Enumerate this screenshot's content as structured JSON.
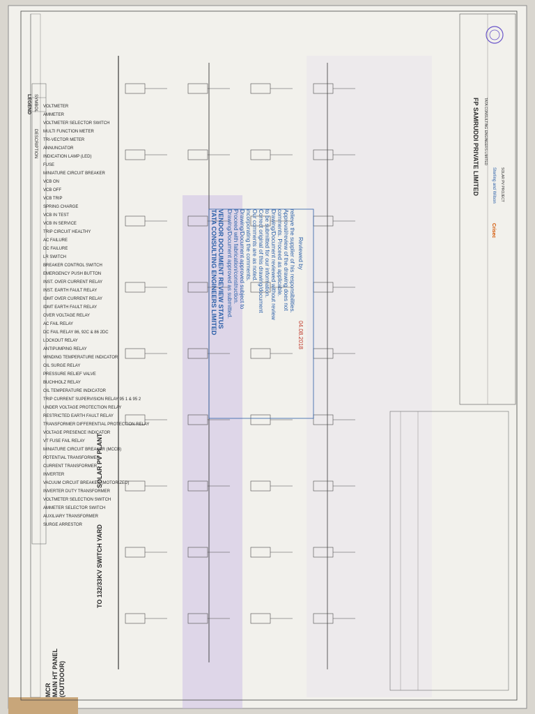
{
  "header": {
    "switchyard": "TO 132/33KV SWITCH YARD",
    "plant": "SOLAR PV PLANT",
    "mcr": [
      "MCR",
      "MAIN HT PANEL",
      "(OUTDOOR)"
    ]
  },
  "legend": {
    "title": "LEGEND",
    "col_symbol": "SYMBOL",
    "col_description": "DESCRIPTION",
    "items": [
      "VOLTMETER",
      "AMMETER",
      "VOLTMETER SELECTOR SWITCH",
      "MULTI FUNCTION METER",
      "TRI-VECTOR METER",
      "ANNUNCIATOR",
      "INDICATION LAMP (LED)",
      "FUSE",
      "MINIATURE CIRCUIT BREAKER",
      "VCB ON",
      "VCB OFF",
      "VCB TRIP",
      "SPRING CHARGE",
      "VCB IN TEST",
      "VCB IN SERVICE",
      "TRIP CIRCUIT HEALTHY",
      "AC FAILURE",
      "DC FAILURE",
      "LR SWITCH",
      "BREAKER CONTROL SWITCH",
      "EMERGENCY PUSH BUTTON",
      "INST. OVER CURRENT RELAY",
      "INST. EARTH FAULT RELAY",
      "IDMT OVER CURRENT RELAY",
      "IDMT EARTH FAULT RELAY",
      "OVER VOLTAGE RELAY",
      "AC FAIL RELAY",
      "DC FAIL RELAY 86, 92C & 86 2DC",
      "LOCKOUT RELAY",
      "ANTIPUMPING RELAY",
      "WINDING TEMPERATURE INDICATOR",
      "OIL SURGE RELAY",
      "PRESSURE RELIEF VALVE",
      "BUCHHOLZ RELAY",
      "OIL TEMPERATURE INDICATOR",
      "TRIP CURRENT SUPERVISION RELAY 95 1 & 95 2",
      "UNDER VOLTAGE PROTECTION RELAY",
      "RESTRICTED EARTH FAULT RELAY",
      "TRANSFORMER DIFFERENTIAL PROTECTION RELAY",
      "VOLTAGE PRESENCE INDICATOR",
      "VT FUSE FAIL RELAY",
      "MINIATURE CIRCUIT BREAKER (MCCB)",
      "POTENTIAL TRANSFORMER",
      "CURRENT TRANSFORMER",
      "INVERTER",
      "VACUUM CIRCUIT BREAKER (MOTORIZED)",
      "INVERTER DUTY TRANSFORMER",
      "VOLTMETER SELECTION SWITCH",
      "AMMETER SELECTOR SWITCH",
      "AUXILIARY TRANSFORMER",
      "SURGE ARRESTOR"
    ]
  },
  "stamp": {
    "company": "TATA CONSULTING ENGINEERS LIMITED",
    "heading": "VENDOR DOCUMENT REVIEW STATUS",
    "lines": [
      "Drawing/Document approved as submitted.",
      "Proceed with fabrication/construction.",
      "Drawing/Document approved subject to",
      "incorporating the comments.",
      "Our comments are as noted.",
      "Correct original of this drawing/document",
      "to be submitted for our information.",
      "Drawing/Document reviewed without review",
      "comments. Proceed as applicable.",
      "Approval/review of the drawing does not",
      "relieve the supplier of his responsibilities."
    ],
    "reviewed_by": "Reviewed by",
    "date": "04.08.2018"
  },
  "title_block": {
    "client": "FP SAMRUDDI PRIVATE LIMITED",
    "consultant": "TATA CONSULTING ENGINEERS LIMITED",
    "contractor": "Sterling and Wilson",
    "vendor": "Crisec",
    "project": "SOLAR PV PROJECT"
  }
}
